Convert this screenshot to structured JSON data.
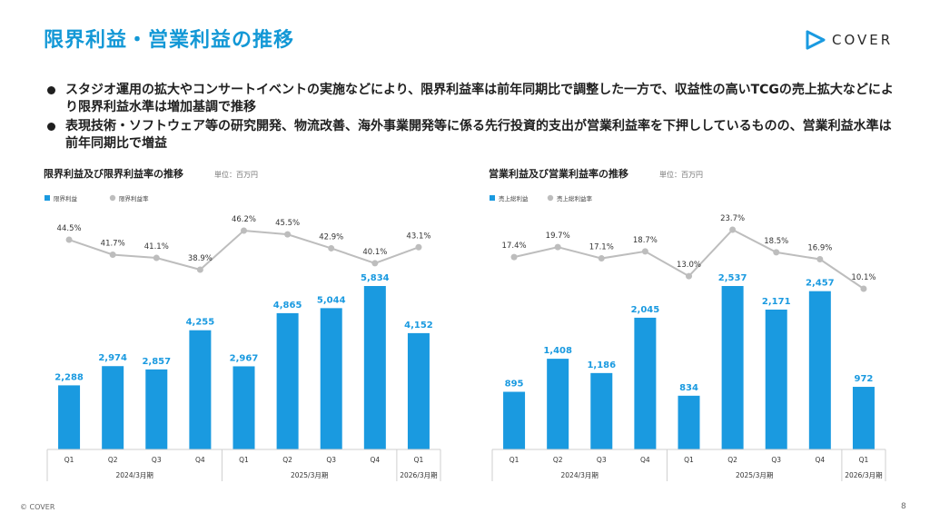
{
  "page": {
    "title": "限界利益・営業利益の推移",
    "logo_text": "COVER",
    "bullets": [
      "スタジオ運用の拡大やコンサートイベントの実施などにより、限界利益率は前年同期比で調整した一方で、収益性の高いTCGの売上拡大などにより限界利益水準は増加基調で推移",
      "表現技術・ソフトウェア等の研究開発、物流改善、海外事業開発等に係る先行投資的支出が営業利益率を下押ししているものの、営業利益水準は前年同期比で増益"
    ],
    "footer": "© COVER",
    "page_number": "8"
  },
  "colors": {
    "bar": "#1a9ae0",
    "line": "#bdbdbd",
    "label": "#1a9ae0",
    "title": "#1398d6"
  },
  "chart_data": [
    {
      "type": "bar",
      "title": "限界利益及び限界利益率の推移",
      "unit": "単位：百万円",
      "categories": [
        "Q1",
        "Q2",
        "Q3",
        "Q4",
        "Q1",
        "Q2",
        "Q3",
        "Q4",
        "Q1"
      ],
      "groups": [
        {
          "label": "2024/3月期",
          "count": 4
        },
        {
          "label": "2025/3月期",
          "count": 4
        },
        {
          "label": "2026/3月期",
          "count": 1
        }
      ],
      "series": [
        {
          "name": "限界利益",
          "kind": "bar",
          "values": [
            2288,
            2974,
            2857,
            4255,
            2967,
            4865,
            5044,
            5834,
            4152
          ],
          "labels": [
            "2,288",
            "2,974",
            "2,857",
            "4,255",
            "2,967",
            "4,865",
            "5,044",
            "5,834",
            "4,152"
          ]
        },
        {
          "name": "限界利益率",
          "kind": "line",
          "values": [
            44.5,
            41.7,
            41.1,
            38.9,
            46.2,
            45.5,
            42.9,
            40.1,
            43.1
          ],
          "labels": [
            "44.5%",
            "41.7%",
            "41.1%",
            "38.9%",
            "46.2%",
            "45.5%",
            "42.9%",
            "40.1%",
            "43.1%"
          ]
        }
      ]
    },
    {
      "type": "bar",
      "title": "営業利益及び営業利益率の推移",
      "unit": "単位：百万円",
      "categories": [
        "Q1",
        "Q2",
        "Q3",
        "Q4",
        "Q1",
        "Q2",
        "Q3",
        "Q4",
        "Q1"
      ],
      "groups": [
        {
          "label": "2024/3月期",
          "count": 4
        },
        {
          "label": "2025/3月期",
          "count": 4
        },
        {
          "label": "2026/3月期",
          "count": 1
        }
      ],
      "series": [
        {
          "name": "売上総利益",
          "kind": "bar",
          "values": [
            895,
            1408,
            1186,
            2045,
            834,
            2537,
            2171,
            2457,
            972
          ],
          "labels": [
            "895",
            "1,408",
            "1,186",
            "2,045",
            "834",
            "2,537",
            "2,171",
            "2,457",
            "972"
          ]
        },
        {
          "name": "売上総利益率",
          "kind": "line",
          "values": [
            17.4,
            19.7,
            17.1,
            18.7,
            13.0,
            23.7,
            18.5,
            16.9,
            10.1
          ],
          "labels": [
            "17.4%",
            "19.7%",
            "17.1%",
            "18.7%",
            "13.0%",
            "23.7%",
            "18.5%",
            "16.9%",
            "10.1%"
          ]
        }
      ]
    }
  ]
}
